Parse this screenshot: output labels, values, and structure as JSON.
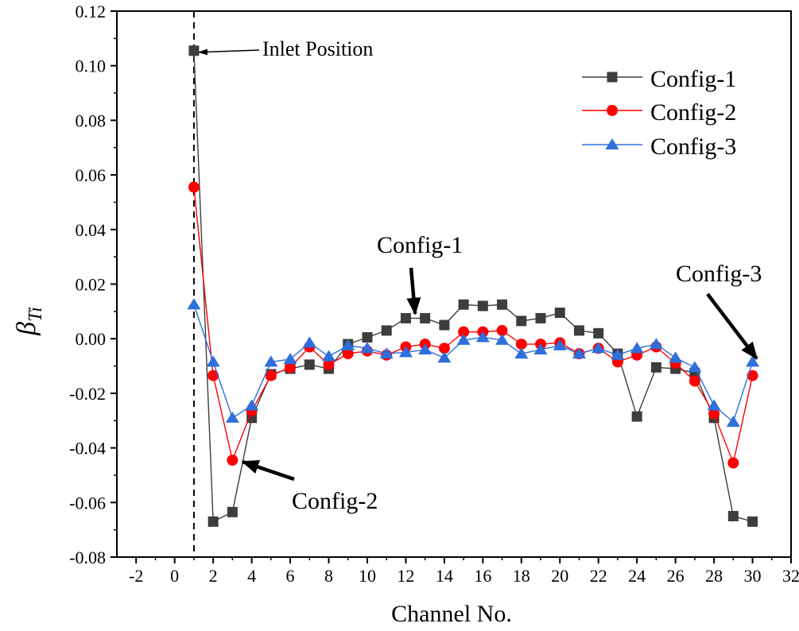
{
  "chart_data": {
    "type": "line",
    "title": "",
    "xlabel": "Channel No.",
    "ylabel": "β",
    "ylabel_subscript": "Ti",
    "xlim": [
      -3,
      32
    ],
    "ylim": [
      -0.08,
      0.12
    ],
    "xticks": [
      -2,
      0,
      2,
      4,
      6,
      8,
      10,
      12,
      14,
      16,
      18,
      20,
      22,
      24,
      26,
      28,
      30,
      32
    ],
    "yticks": [
      -0.08,
      -0.06,
      -0.04,
      -0.02,
      0.0,
      0.02,
      0.04,
      0.06,
      0.08,
      0.1,
      0.12
    ],
    "ytick_labels": [
      "-0.08",
      "-0.06",
      "-0.04",
      "-0.02",
      "0.00",
      "0.02",
      "0.04",
      "0.06",
      "0.08",
      "0.10",
      "0.12"
    ],
    "x": [
      1,
      2,
      3,
      4,
      5,
      6,
      7,
      8,
      9,
      10,
      11,
      12,
      13,
      14,
      15,
      16,
      17,
      18,
      19,
      20,
      21,
      22,
      23,
      24,
      25,
      26,
      27,
      28,
      29,
      30
    ],
    "series": [
      {
        "name": "Config-1",
        "color": "#3d3d3d",
        "marker": "square",
        "values": [
          0.1055,
          -0.067,
          -0.0635,
          -0.029,
          -0.013,
          -0.011,
          -0.0095,
          -0.011,
          -0.002,
          0.0005,
          0.003,
          0.0075,
          0.0075,
          0.005,
          0.0125,
          0.012,
          0.0125,
          0.0065,
          0.0075,
          0.0095,
          0.003,
          0.002,
          -0.0055,
          -0.0285,
          -0.0105,
          -0.011,
          -0.0125,
          -0.029,
          -0.065,
          -0.067
        ]
      },
      {
        "name": "Config-2",
        "color": "#ff0000",
        "marker": "circle",
        "values": [
          0.0555,
          -0.0135,
          -0.0445,
          -0.0265,
          -0.0135,
          -0.0105,
          -0.003,
          -0.0095,
          -0.0055,
          -0.0045,
          -0.006,
          -0.003,
          -0.002,
          -0.0035,
          0.0025,
          0.0025,
          0.003,
          -0.002,
          -0.002,
          -0.0015,
          -0.0055,
          -0.0035,
          -0.0085,
          -0.006,
          -0.003,
          -0.009,
          -0.0155,
          -0.0275,
          -0.0455,
          -0.0135
        ]
      },
      {
        "name": "Config-3",
        "color": "#2e6fdb",
        "marker": "triangle",
        "values": [
          0.0125,
          -0.0085,
          -0.029,
          -0.0245,
          -0.0085,
          -0.0075,
          -0.0015,
          -0.0065,
          -0.0025,
          -0.0035,
          -0.0055,
          -0.005,
          -0.004,
          -0.007,
          -0.0005,
          0.0005,
          -0.0005,
          -0.0055,
          -0.004,
          -0.0025,
          -0.0055,
          -0.0035,
          -0.006,
          -0.0035,
          -0.002,
          -0.007,
          -0.0105,
          -0.0245,
          -0.0305,
          -0.0085
        ]
      }
    ],
    "legend": {
      "position": "top-right",
      "entries": [
        "Config-1",
        "Config-2",
        "Config-3"
      ]
    },
    "annotations": [
      {
        "text": "Inlet Position",
        "target_x": 1,
        "target_y": 0.1055
      },
      {
        "text": "Config-1",
        "target_x": 12.4,
        "target_y": 0.008
      },
      {
        "text": "Config-2",
        "target_x": 3.2,
        "target_y": -0.0445
      },
      {
        "text": "Config-3",
        "target_x": 30.3,
        "target_y": -0.009
      }
    ],
    "vertical_line": {
      "x": 1,
      "style": "dashed"
    }
  }
}
